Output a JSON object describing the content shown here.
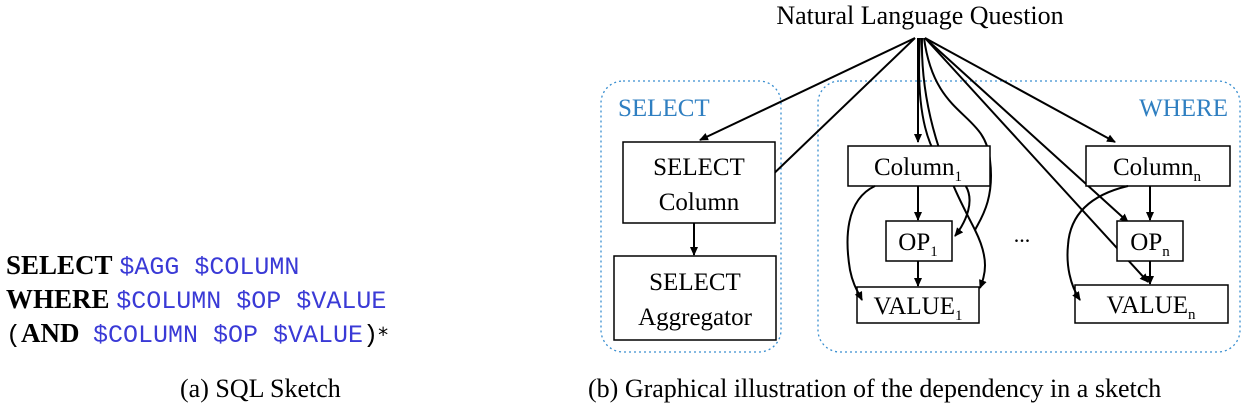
{
  "sql_sketch": {
    "line1": {
      "keyword": "SELECT",
      "rest": "$AGG $COLUMN"
    },
    "line2": {
      "keyword": "WHERE",
      "rest": "$COLUMN $OP $VALUE"
    },
    "line3": {
      "open": "(",
      "keyword": "AND",
      "rest": "$COLUMN $OP $VALUE",
      "close": ")",
      "star": "*"
    }
  },
  "captions": {
    "a": "(a) SQL Sketch",
    "b": "(b) Graphical illustration of the dependency in a sketch"
  },
  "diagram": {
    "top_node": "Natural Language Question",
    "select_group_label": "SELECT",
    "where_group_label": "WHERE",
    "select_column": {
      "line1": "SELECT",
      "line2": "Column"
    },
    "select_aggregator": {
      "line1": "SELECT",
      "line2": "Aggregator"
    },
    "column1": {
      "base": "Column",
      "sub": "1"
    },
    "columnn": {
      "base": "Column",
      "sub": "n"
    },
    "op1": {
      "base": "OP",
      "sub": "1"
    },
    "opn": {
      "base": "OP",
      "sub": "n"
    },
    "value1": {
      "base": "VALUE",
      "sub": "1"
    },
    "valuen": {
      "base": "VALUE",
      "sub": "n"
    },
    "ellipsis": "...",
    "colors": {
      "group_label": "#2f7fc1",
      "group_border": "#3a8fd0",
      "line": "#000000"
    }
  }
}
